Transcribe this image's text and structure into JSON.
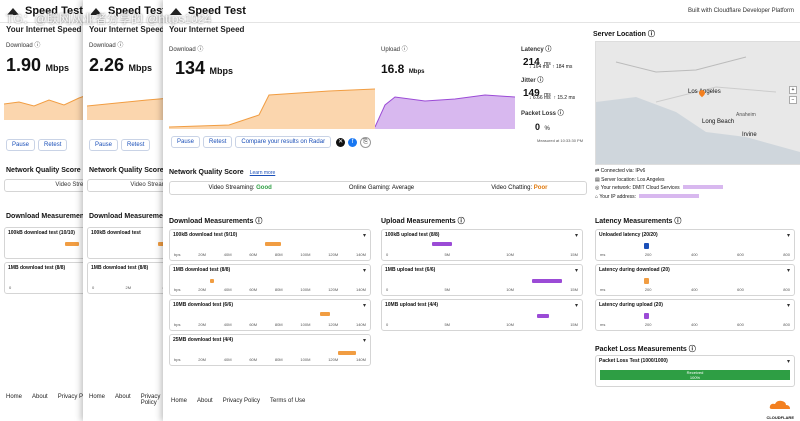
{
  "watermark": "TG：@联网从业者分享的 @https1024",
  "colors": {
    "download": "#f19d42",
    "upload": "#9b4bd6",
    "accent": "#1a4fb8",
    "pass": "#2e9e44"
  },
  "left_window": {
    "app_title": "Speed Test",
    "subtitle": "Your Internet Speed",
    "download_label": "Download ⓘ",
    "download_value": "1.90",
    "unit": "Mbps",
    "pause": "Pause",
    "retest": "Retest",
    "nqs_title": "Network Quality Score",
    "nqs_snippet": "Video Streami",
    "dm_title": "Download Measurements",
    "row1": "100kB download test (10/10)",
    "row2": "1MB download test (8/8)",
    "axis": [
      "0",
      "0.5M"
    ],
    "footer": [
      "Home",
      "About",
      "Privacy Policy"
    ]
  },
  "middle_window": {
    "app_title": "Speed Test",
    "subtitle": "Your Internet Speed",
    "download_label": "Download ⓘ",
    "download_value": "2.26",
    "unit": "Mbps",
    "pause": "Pause",
    "retest": "Retest",
    "nqs_title": "Network Quality Score",
    "nqs_snippet": "Video Streami",
    "dm_title": "Download Measureme",
    "row1": "100kB download test",
    "row2": "1MB download test (8/8)",
    "axis": [
      "0",
      "2M",
      "4M"
    ],
    "footer": [
      "Home",
      "About",
      "Privacy Policy"
    ]
  },
  "main_window": {
    "app_title": "Speed Test",
    "built_with": "Built with Cloudflare Developer Platform",
    "subtitle": "Your Internet Speed",
    "download_label": "Download ⓘ",
    "download_value": "134",
    "upload_label": "Upload ⓘ",
    "upload_value": "16.8",
    "unit": "Mbps",
    "latency_label": "Latency ⓘ",
    "latency_value": "214",
    "latency_unit": "ms",
    "latency_down": "↓ 164 ms",
    "latency_up": "↑ 184 ms",
    "jitter_label": "Jitter ⓘ",
    "jitter_value": "149",
    "jitter_down": "↓ 6.66 ms",
    "jitter_up": "↑ 15.2 ms",
    "loss_label": "Packet Loss ⓘ",
    "loss_value": "0",
    "loss_unit": "%",
    "measured_at": "Measured at 10:33:30 PM",
    "pause": "Pause",
    "retest": "Retest",
    "compare": "Compare your results on Radar",
    "server_location": "Server Location ⓘ",
    "map_labels": [
      "Los Angeles",
      "Long Beach",
      "Irvine",
      "Anaheim"
    ],
    "info": [
      {
        "icon": "network-icon",
        "text": "Connected via: IPv6"
      },
      {
        "icon": "server-icon",
        "text": "Server location: Los Angeles"
      },
      {
        "icon": "globe-icon",
        "text": "Your network: DMIT Cloud Services"
      },
      {
        "icon": "ip-icon",
        "text": "Your IP address:"
      }
    ],
    "nqs_title": "Network Quality Score",
    "learn_more": "Learn more",
    "nqs": [
      {
        "label": "Video Streaming:",
        "value": "Good"
      },
      {
        "label": "Online Gaming:",
        "value": "Average"
      },
      {
        "label": "Video Chatting:",
        "value": "Poor"
      }
    ],
    "download_measurements": "Download Measurements ⓘ",
    "upload_measurements": "Upload Measurements ⓘ",
    "latency_measurements": "Latency Measurements ⓘ",
    "packet_loss_measurements": "Packet Loss Measurements ⓘ",
    "dl_tests": [
      "100kB download test (9/10)",
      "1MB download test (8/8)",
      "10MB download test (6/6)",
      "25MB download test (4/4)"
    ],
    "ul_tests": [
      "100kB upload test (8/8)",
      "1MB upload test (6/6)",
      "10MB upload test (4/4)"
    ],
    "lat_tests": [
      "Unloaded latency (20/20)",
      "Latency during download (20)",
      "Latency during upload (20)"
    ],
    "loss_test": "Packet Loss Test (1000/1000)",
    "loss_bar": "Received",
    "loss_bar_pct": "100%",
    "dl_axis": [
      "bps",
      "20M",
      "40M",
      "60M",
      "80M",
      "100M",
      "120M",
      "140M"
    ],
    "ul_axis": [
      "0",
      "5M",
      "10M",
      "15M"
    ],
    "lat_axis": [
      "ms",
      "200",
      "400",
      "600",
      "800"
    ],
    "footer": [
      "Home",
      "About",
      "Privacy Policy",
      "Terms of Use"
    ],
    "cf_logo": "CLOUDFLARE"
  }
}
